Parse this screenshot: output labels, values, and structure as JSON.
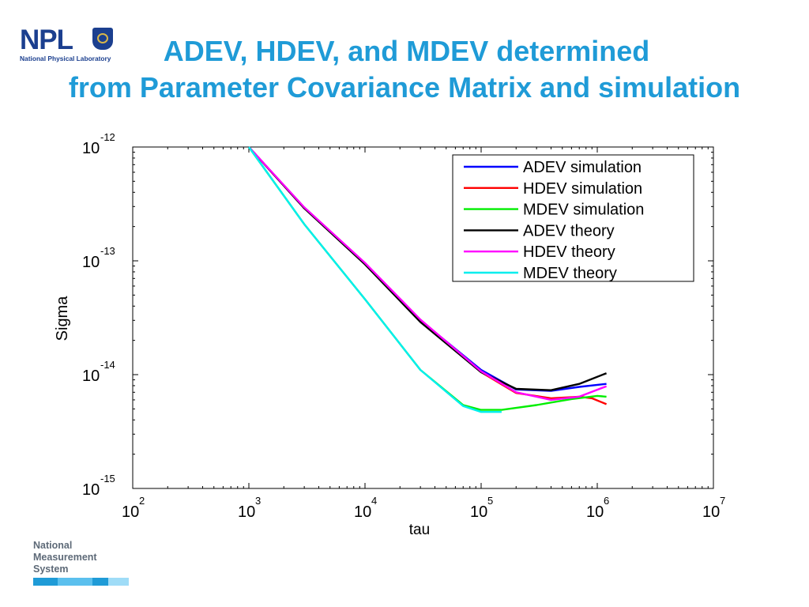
{
  "logo": {
    "word": "NPL",
    "subtitle": "National Physical Laboratory",
    "crest_icon": "npl-crest-icon"
  },
  "title": {
    "line1": "ADEV, HDEV, and MDEV determined",
    "line2": "from Parameter Covariance Matrix and simulation"
  },
  "footer": {
    "lines": [
      "National",
      "Measurement",
      "System"
    ],
    "colors": [
      "#1f9bd7",
      "#5bc0ee",
      "#9fdcf7"
    ]
  },
  "chart_data": {
    "type": "line",
    "xlabel": "tau",
    "ylabel": "Sigma",
    "x_scale": "log",
    "y_scale": "log",
    "xlim": [
      100,
      10000000
    ],
    "ylim": [
      1e-15,
      1e-12
    ],
    "x_ticks": [
      {
        "base": "10",
        "exp": "2",
        "value": 100
      },
      {
        "base": "10",
        "exp": "3",
        "value": 1000
      },
      {
        "base": "10",
        "exp": "4",
        "value": 10000
      },
      {
        "base": "10",
        "exp": "5",
        "value": 100000
      },
      {
        "base": "10",
        "exp": "6",
        "value": 1000000
      },
      {
        "base": "10",
        "exp": "7",
        "value": 10000000
      }
    ],
    "y_ticks": [
      {
        "base": "10",
        "exp": "-12",
        "value": 1e-12
      },
      {
        "base": "10",
        "exp": "-13",
        "value": 1e-13
      },
      {
        "base": "10",
        "exp": "-14",
        "value": 1e-14
      },
      {
        "base": "10",
        "exp": "-15",
        "value": 1e-15
      }
    ],
    "grid": false,
    "legend_position": "top-right",
    "series": [
      {
        "name": "ADEV simulation",
        "color": "#0000ff",
        "x": [
          1000,
          3000,
          10000,
          30000,
          100000,
          200000,
          400000,
          700000,
          1200000
        ],
        "y": [
          1e-12,
          2.9e-13,
          9.4e-14,
          3e-14,
          1.1e-14,
          7.4e-15,
          7.2e-15,
          7.8e-15,
          8.3e-15
        ]
      },
      {
        "name": "HDEV simulation",
        "color": "#ff0000",
        "x": [
          1000,
          3000,
          10000,
          30000,
          100000,
          200000,
          400000,
          700000,
          900000,
          1200000
        ],
        "y": [
          1e-12,
          2.9e-13,
          9.4e-14,
          3e-14,
          1.05e-14,
          6.9e-15,
          6.2e-15,
          6.4e-15,
          6.2e-15,
          5.5e-15
        ]
      },
      {
        "name": "MDEV simulation",
        "color": "#00ee00",
        "x": [
          1000,
          3000,
          10000,
          30000,
          70000,
          100000,
          150000,
          300000,
          600000,
          1000000,
          1200000
        ],
        "y": [
          1e-12,
          2.1e-13,
          4.6e-14,
          1.1e-14,
          5.4e-15,
          4.9e-15,
          4.9e-15,
          5.4e-15,
          6.1e-15,
          6.5e-15,
          6.4e-15
        ]
      },
      {
        "name": "ADEV theory",
        "color": "#000000",
        "x": [
          1000,
          3000,
          10000,
          30000,
          100000,
          200000,
          400000,
          700000,
          1200000
        ],
        "y": [
          1e-12,
          2.9e-13,
          9.3e-14,
          2.9e-14,
          1.05e-14,
          7.5e-15,
          7.3e-15,
          8.3e-15,
          1.03e-14
        ]
      },
      {
        "name": "HDEV theory",
        "color": "#ff00ff",
        "x": [
          1000,
          3000,
          10000,
          30000,
          100000,
          200000,
          400000,
          700000,
          1200000
        ],
        "y": [
          1e-12,
          2.95e-13,
          9.6e-14,
          3.05e-14,
          1.07e-14,
          7e-15,
          6e-15,
          6.4e-15,
          7.9e-15
        ]
      },
      {
        "name": "MDEV theory",
        "color": "#00eeee",
        "x": [
          1000,
          3000,
          10000,
          30000,
          70000,
          100000,
          150000
        ],
        "y": [
          1e-12,
          2.1e-13,
          4.6e-14,
          1.1e-14,
          5.3e-15,
          4.7e-15,
          4.7e-15
        ]
      }
    ]
  }
}
